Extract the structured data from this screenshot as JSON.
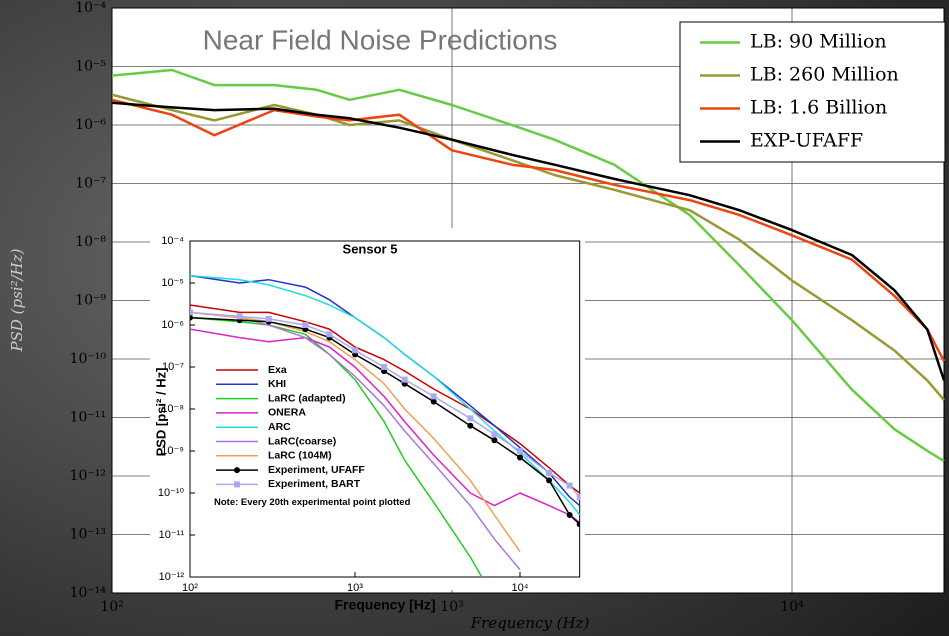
{
  "chart_data": [
    {
      "type": "line",
      "title": "Near Field Noise Predictions",
      "xlabel": "Frequency (Hz)",
      "ylabel": "PSD (psi²/Hz)",
      "log_x": true,
      "log_y": true,
      "grid": true,
      "legend": "upper right",
      "xlim": [
        100,
        28000
      ],
      "ylim": [
        1e-14,
        0.0001
      ],
      "xticks": [
        {
          "value": 100,
          "label": "10²"
        },
        {
          "value": 1000,
          "label": "10³"
        },
        {
          "value": 10000,
          "label": "10⁴"
        }
      ],
      "yticks": [
        {
          "value": 1e-14,
          "label": "10⁻¹⁴"
        },
        {
          "value": 1e-13,
          "label": "10⁻¹³"
        },
        {
          "value": 1e-12,
          "label": "10⁻¹²"
        },
        {
          "value": 1e-11,
          "label": "10⁻¹¹"
        },
        {
          "value": 1e-10,
          "label": "10⁻¹⁰"
        },
        {
          "value": 1e-09,
          "label": "10⁻⁹"
        },
        {
          "value": 1e-08,
          "label": "10⁻⁸"
        },
        {
          "value": 1e-07,
          "label": "10⁻⁷"
        },
        {
          "value": 1e-06,
          "label": "10⁻⁶"
        },
        {
          "value": 1e-05,
          "label": "10⁻⁵"
        },
        {
          "value": 0.0001,
          "label": "10⁻⁴"
        }
      ],
      "x": [
        100,
        150,
        200,
        300,
        400,
        500,
        700,
        1000,
        1500,
        2000,
        3000,
        5000,
        7000,
        10000,
        15000,
        20000,
        25000,
        28000
      ],
      "series": [
        {
          "name": "LB: 90 Million",
          "color": "#66cc44",
          "values": [
            7e-06,
            8.7e-06,
            4.8e-06,
            4.8e-06,
            4e-06,
            2.7e-06,
            4e-06,
            2.2e-06,
            1e-06,
            5.6e-07,
            2.1e-07,
            2.9e-08,
            4e-09,
            4.6e-10,
            3e-11,
            6.3e-12,
            2.7e-12,
            1.8e-12
          ]
        },
        {
          "name": "LB: 260 Million",
          "color": "#999933",
          "values": [
            3.3e-06,
            1.8e-06,
            1.2e-06,
            2.2e-06,
            1.5e-06,
            1e-06,
            1.2e-06,
            5.6e-07,
            2.5e-07,
            1.4e-07,
            7.8e-08,
            3.5e-08,
            1.1e-08,
            2.2e-09,
            4.6e-10,
            1.4e-10,
            4.3e-11,
            2e-11
          ]
        },
        {
          "name": "LB: 1.6 Billion",
          "color": "#ee4411",
          "values": [
            2.7e-06,
            1.5e-06,
            6.7e-07,
            1.8e-06,
            1.4e-06,
            1.2e-06,
            1.5e-06,
            3.7e-07,
            2.1e-07,
            1.7e-07,
            9.5e-08,
            5.2e-08,
            2.9e-08,
            1.3e-08,
            5e-09,
            1.2e-09,
            3.2e-10,
            9.2e-11
          ]
        },
        {
          "name": "EXP-UFAFF",
          "color": "#000000",
          "values": [
            2.4e-06,
            2e-06,
            1.8e-06,
            1.9e-06,
            1.5e-06,
            1.3e-06,
            9e-07,
            5.6e-07,
            3.1e-07,
            2.1e-07,
            1.2e-07,
            6.3e-08,
            3.5e-08,
            1.6e-08,
            6e-09,
            1.5e-09,
            3.2e-10,
            4.3e-11
          ]
        }
      ]
    },
    {
      "type": "line",
      "title": "Sensor 5",
      "xlabel": "Frequency [Hz]",
      "ylabel": "PSD [psi² / Hz]",
      "log_x": true,
      "log_y": true,
      "grid": false,
      "legend": "lower left",
      "note": "Note: Every 20th experimental point plotted",
      "xlim": [
        100,
        23000
      ],
      "ylim": [
        1e-12,
        0.0001
      ],
      "xticks": [
        {
          "value": 100,
          "label": "10²"
        },
        {
          "value": 1000,
          "label": "10³"
        },
        {
          "value": 10000,
          "label": "10⁴"
        }
      ],
      "yticks": [
        {
          "value": 1e-12,
          "label": "10⁻¹²"
        },
        {
          "value": 1e-11,
          "label": "10⁻¹¹"
        },
        {
          "value": 1e-10,
          "label": "10⁻¹⁰"
        },
        {
          "value": 1e-09,
          "label": "10⁻⁹"
        },
        {
          "value": 1e-08,
          "label": "10⁻⁸"
        },
        {
          "value": 1e-07,
          "label": "10⁻⁷"
        },
        {
          "value": 1e-06,
          "label": "10⁻⁶"
        },
        {
          "value": 1e-05,
          "label": "10⁻⁵"
        },
        {
          "value": 0.0001,
          "label": "10⁻⁴"
        }
      ],
      "x": [
        100,
        200,
        300,
        500,
        700,
        1000,
        1500,
        2000,
        3000,
        5000,
        7000,
        10000,
        15000,
        20000,
        23000
      ],
      "series": [
        {
          "name": "Exa",
          "color": "#cc0000",
          "values": [
            3e-06,
            2e-06,
            2e-06,
            1.2e-06,
            8e-07,
            3e-07,
            1.5e-07,
            8e-08,
            3e-08,
            1e-08,
            4e-09,
            1.5e-09,
            4e-10,
            1.5e-10,
            1e-10
          ]
        },
        {
          "name": "KHI",
          "color": "#2233cc",
          "values": [
            1.5e-05,
            1e-05,
            1.2e-05,
            8e-06,
            4e-06,
            1.5e-06,
            5e-07,
            2e-07,
            6e-08,
            1.2e-08,
            4e-09,
            1.2e-09,
            3e-10,
            8e-11,
            5e-11
          ]
        },
        {
          "name": "LaRC (adapted)",
          "color": "#22cc22",
          "values": [
            1.5e-06,
            1.2e-06,
            1e-06,
            6e-07,
            2e-07,
            5e-08,
            5e-09,
            6e-10,
            6e-11,
            3e-12,
            3e-13,
            null,
            null,
            null,
            null
          ]
        },
        {
          "name": "ONERA",
          "color": "#dd22cc",
          "values": [
            8e-07,
            5e-07,
            4e-07,
            5e-07,
            3e-07,
            1e-07,
            2e-08,
            5e-09,
            8e-10,
            1e-10,
            5e-11,
            1e-10,
            5e-11,
            3e-11,
            2e-11
          ]
        },
        {
          "name": "ARC",
          "color": "#22dddd",
          "values": [
            1.5e-05,
            1.2e-05,
            9e-06,
            5e-06,
            3e-06,
            1.5e-06,
            5e-07,
            2e-07,
            6e-08,
            1e-08,
            3e-09,
            9e-10,
            2e-10,
            6e-11,
            3e-11
          ]
        },
        {
          "name": "LaRC(coarse)",
          "color": "#aa77dd",
          "values": [
            2e-06,
            1.5e-06,
            1e-06,
            5e-07,
            2e-07,
            6e-08,
            1.2e-08,
            3e-09,
            5e-10,
            5e-11,
            8e-12,
            1.5e-12,
            null,
            null,
            null
          ]
        },
        {
          "name": "LaRC (104M)",
          "color": "#f0a050",
          "values": [
            2e-06,
            1.5e-06,
            1.2e-06,
            7e-07,
            4e-07,
            1.5e-07,
            4e-08,
            1e-08,
            2e-09,
            2e-10,
            3e-11,
            4e-12,
            null,
            null,
            null
          ]
        },
        {
          "name": "Experiment, UFAFF",
          "color": "#000000",
          "marker": "circle",
          "values": [
            1.5e-06,
            1.3e-06,
            1.2e-06,
            8e-07,
            5e-07,
            2e-07,
            8e-08,
            4e-08,
            1.5e-08,
            4e-09,
            1.8e-09,
            7e-10,
            2e-10,
            3e-11,
            1.8e-11
          ]
        },
        {
          "name": "Experiment, BART",
          "color": "#aaaaee",
          "marker": "square",
          "values": [
            2e-06,
            1.6e-06,
            1.4e-06,
            1e-06,
            6e-07,
            2.5e-07,
            1e-07,
            5e-08,
            2e-08,
            6e-09,
            2.5e-09,
            1e-09,
            3e-10,
            1.5e-10,
            8e-11
          ]
        }
      ]
    }
  ]
}
